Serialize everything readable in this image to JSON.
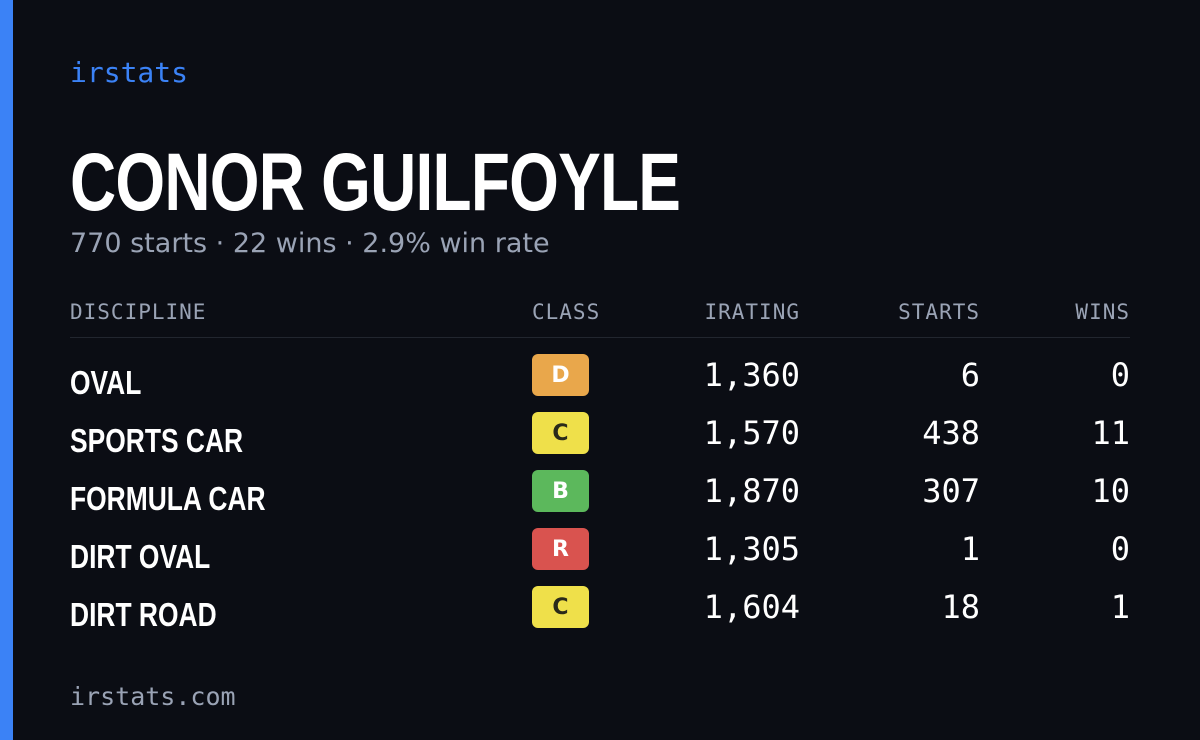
{
  "brand": "irstats",
  "driver": {
    "name": "CONOR GUILFOYLE",
    "summary": "770 starts · 22 wins · 2.9% win rate"
  },
  "table": {
    "headers": [
      "DISCIPLINE",
      "CLASS",
      "IRATING",
      "STARTS",
      "WINS"
    ],
    "rows": [
      {
        "discipline": "OVAL",
        "class": "D",
        "class_color": "#e9a74b",
        "class_text_color": "#ffffff",
        "irating": "1,360",
        "starts": "6",
        "wins": "0"
      },
      {
        "discipline": "SPORTS CAR",
        "class": "C",
        "class_color": "#efe04a",
        "class_text_color": "#2a2a1a",
        "irating": "1,570",
        "starts": "438",
        "wins": "11"
      },
      {
        "discipline": "FORMULA CAR",
        "class": "B",
        "class_color": "#5cb85c",
        "class_text_color": "#ffffff",
        "irating": "1,870",
        "starts": "307",
        "wins": "10"
      },
      {
        "discipline": "DIRT OVAL",
        "class": "R",
        "class_color": "#d9534f",
        "class_text_color": "#ffffff",
        "irating": "1,305",
        "starts": "1",
        "wins": "0"
      },
      {
        "discipline": "DIRT ROAD",
        "class": "C",
        "class_color": "#efe04a",
        "class_text_color": "#2a2a1a",
        "irating": "1,604",
        "starts": "18",
        "wins": "1"
      }
    ]
  },
  "footer": "irstats.com"
}
